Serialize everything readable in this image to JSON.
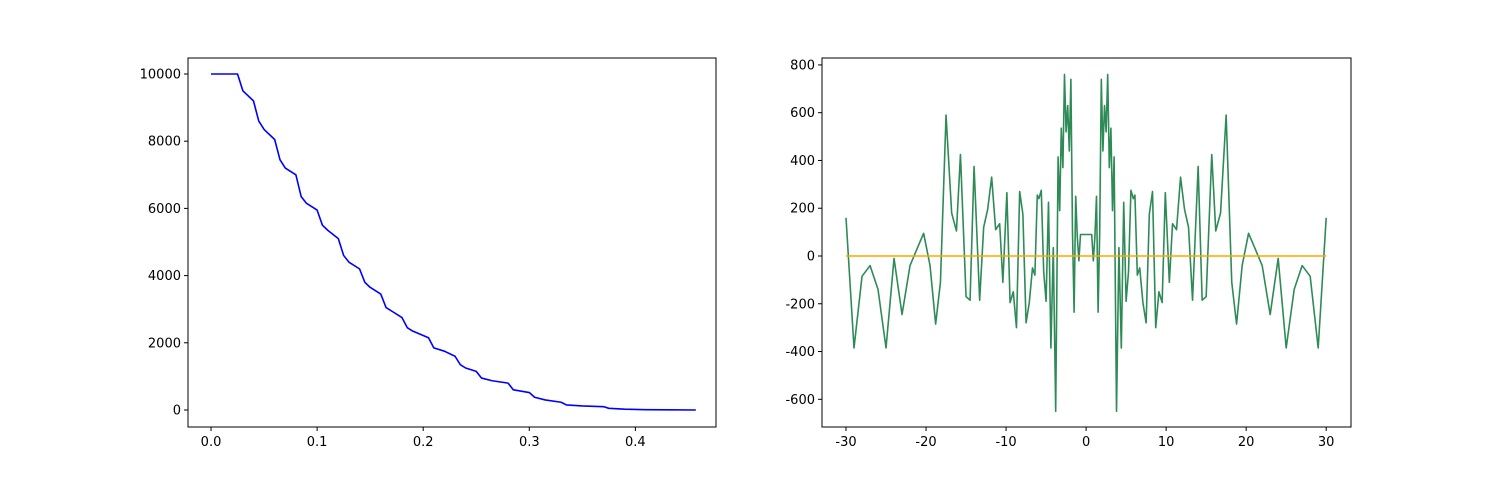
{
  "chart_data": [
    {
      "type": "line",
      "xlim": [
        -0.0217,
        0.476
      ],
      "ylim": [
        -506,
        10476
      ],
      "xticks": [
        {
          "value": 0,
          "label": "0.0"
        },
        0.1,
        0.2,
        0.3,
        0.4
      ],
      "yticks": [
        0,
        2000,
        4000,
        6000,
        8000,
        10000
      ],
      "series": [
        {
          "color": "#0000ff",
          "x": [
            0,
            0.025,
            0.03,
            0.04,
            0.045,
            0.05,
            0.06,
            0.065,
            0.07,
            0.08,
            0.085,
            0.09,
            0.1,
            0.105,
            0.11,
            0.12,
            0.125,
            0.13,
            0.14,
            0.145,
            0.15,
            0.16,
            0.165,
            0.17,
            0.18,
            0.185,
            0.19,
            0.205,
            0.21,
            0.22,
            0.23,
            0.235,
            0.24,
            0.25,
            0.255,
            0.265,
            0.28,
            0.285,
            0.3,
            0.305,
            0.315,
            0.33,
            0.335,
            0.35,
            0.37,
            0.375,
            0.39,
            0.41,
            0.43,
            0.457
          ],
          "values": [
            10000,
            10000,
            9500,
            9200,
            8600,
            8350,
            8050,
            7450,
            7200,
            7000,
            6350,
            6150,
            5950,
            5500,
            5350,
            5100,
            4600,
            4400,
            4200,
            3800,
            3650,
            3450,
            3050,
            2950,
            2750,
            2450,
            2350,
            2150,
            1850,
            1750,
            1600,
            1350,
            1250,
            1150,
            950,
            870,
            800,
            600,
            520,
            380,
            300,
            230,
            150,
            120,
            100,
            50,
            25,
            10,
            5,
            0
          ]
        }
      ]
    },
    {
      "type": "line",
      "xlim": [
        -33,
        33.1
      ],
      "ylim": [
        -716,
        829
      ],
      "xticks": [
        -30,
        -20,
        -10,
        0,
        10,
        20,
        30
      ],
      "yticks": [
        -600,
        -400,
        -200,
        0,
        200,
        400,
        600,
        800
      ],
      "series": [
        {
          "color": "#2e8b57",
          "x": [
            -30,
            -29,
            -28,
            -27,
            -26,
            -25,
            -24,
            -23,
            -22,
            -21,
            -20.3,
            -19.5,
            -18.8,
            -18.2,
            -17.5,
            -16.8,
            -16.2,
            -15.7,
            -15,
            -14.5,
            -14,
            -13.3,
            -12.8,
            -12.3,
            -11.8,
            -11.3,
            -10.8,
            -10.4,
            -9.9,
            -9.5,
            -9.1,
            -8.7,
            -8.3,
            -7.9,
            -7.5,
            -7.1,
            -6.7,
            -6.4,
            -6.1,
            -5.9,
            -5.6,
            -5.3,
            -5,
            -4.7,
            -4.4,
            -4.1,
            -3.8,
            -3.5,
            -3.3,
            -3.1,
            -2.9,
            -2.7,
            -2.5,
            -2.3,
            -2.1,
            -1.9,
            -1.7,
            -1.5,
            -1.3,
            -1.1,
            -0.9,
            -0.7,
            0,
            0.7,
            0.9,
            1.1,
            1.3,
            1.5,
            1.7,
            1.9,
            2.1,
            2.3,
            2.5,
            2.7,
            2.9,
            3.1,
            3.3,
            3.5,
            3.8,
            4.1,
            4.4,
            4.7,
            5,
            5.3,
            5.6,
            5.9,
            6.1,
            6.4,
            6.7,
            7.1,
            7.5,
            7.9,
            8.3,
            8.7,
            9.1,
            9.5,
            9.9,
            10.4,
            10.8,
            11.3,
            11.8,
            12.3,
            12.8,
            13.3,
            14,
            14.5,
            15,
            15.7,
            16.2,
            16.8,
            17.5,
            18.2,
            18.8,
            19.5,
            20.3,
            21,
            22,
            23,
            24,
            25,
            26,
            27,
            28,
            29,
            30
          ],
          "values": [
            160,
            -385,
            -85,
            -40,
            -140,
            -385,
            -10,
            -245,
            -40,
            40,
            95,
            -40,
            -285,
            -110,
            590,
            180,
            105,
            425,
            -170,
            -185,
            375,
            -185,
            120,
            195,
            330,
            110,
            135,
            -110,
            265,
            -195,
            -150,
            -300,
            270,
            175,
            -280,
            -195,
            -50,
            -80,
            255,
            240,
            275,
            -65,
            -190,
            225,
            -385,
            35,
            -650,
            415,
            190,
            535,
            370,
            760,
            520,
            630,
            440,
            740,
            100,
            -235,
            250,
            80,
            -20,
            90,
            90,
            90,
            -20,
            80,
            250,
            -235,
            100,
            740,
            440,
            630,
            520,
            760,
            370,
            535,
            190,
            415,
            -650,
            35,
            -385,
            225,
            -190,
            -65,
            275,
            240,
            255,
            -80,
            -50,
            -195,
            -280,
            175,
            270,
            -300,
            -150,
            -195,
            265,
            -110,
            135,
            110,
            330,
            195,
            120,
            -185,
            375,
            -185,
            -170,
            425,
            105,
            180,
            590,
            -110,
            -285,
            -40,
            95,
            40,
            -40,
            -245,
            -10,
            -385,
            -140,
            -40,
            -85,
            -385,
            160
          ]
        },
        {
          "color": "#ffa500",
          "x": [
            -30,
            30
          ],
          "values": [
            0,
            0
          ]
        }
      ]
    }
  ]
}
